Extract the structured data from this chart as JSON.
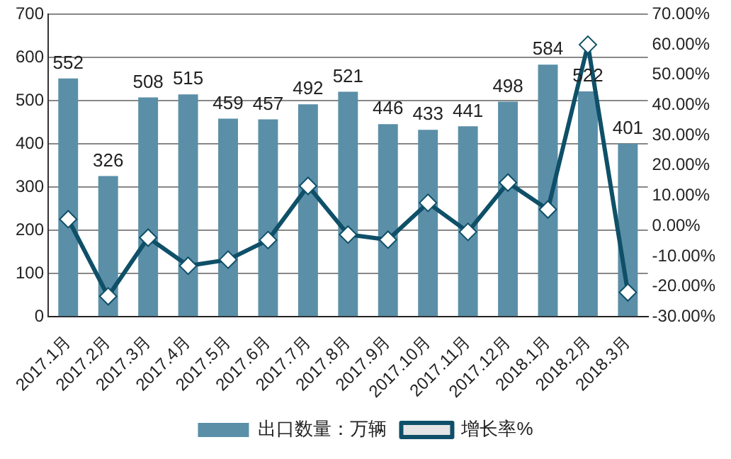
{
  "chart_data": {
    "type": "bar",
    "categories": [
      "2017.1月",
      "2017.2月",
      "2017.3月",
      "2017.4月",
      "2017.5月",
      "2017.6月",
      "2017.7月",
      "2017.8月",
      "2017.9月",
      "2017.10月",
      "2017.11月",
      "2017.12月",
      "2018.1月",
      "2018.2月",
      "2018.3月"
    ],
    "series": [
      {
        "name": "出口数量：万辆",
        "color": "#5b8fa8",
        "values": [
          552,
          326,
          508,
          515,
          459,
          457,
          492,
          521,
          446,
          433,
          441,
          498,
          584,
          522,
          401
        ],
        "value_labels": [
          "552",
          "326",
          "508",
          "515",
          "459",
          "457",
          "492",
          "521",
          "446",
          "433",
          "441",
          "498",
          "584",
          "522",
          "401"
        ]
      },
      {
        "name": "增长率%",
        "type": "line",
        "axis": "y2",
        "color": "#0f5068",
        "marker": "diamond",
        "values": [
          2.3,
          -23.2,
          -3.8,
          -13.1,
          -11.1,
          -4.6,
          13.3,
          -2.8,
          -4.5,
          7.7,
          -1.9,
          14.4,
          5.5,
          60,
          -21.9
        ]
      }
    ],
    "ylim": [
      0,
      700
    ],
    "yticks": [
      0,
      100,
      200,
      300,
      400,
      500,
      600,
      700
    ],
    "y2lim": [
      -30,
      70
    ],
    "y2ticks": [
      {
        "value": -30,
        "label": "-30.00%"
      },
      {
        "value": -20,
        "label": "-20.00%"
      },
      {
        "value": -10,
        "label": "-10.00%"
      },
      {
        "value": 0,
        "label": "0.00%"
      },
      {
        "value": 10,
        "label": "10.00%"
      },
      {
        "value": 20,
        "label": "20.00%"
      },
      {
        "value": 30,
        "label": "30.00%"
      },
      {
        "value": 40,
        "label": "40.00%"
      },
      {
        "value": 50,
        "label": "50.00%"
      },
      {
        "value": 60,
        "label": "60.00%"
      },
      {
        "value": 70,
        "label": "70.00%"
      }
    ],
    "grid": "y",
    "legend": "bottom"
  }
}
